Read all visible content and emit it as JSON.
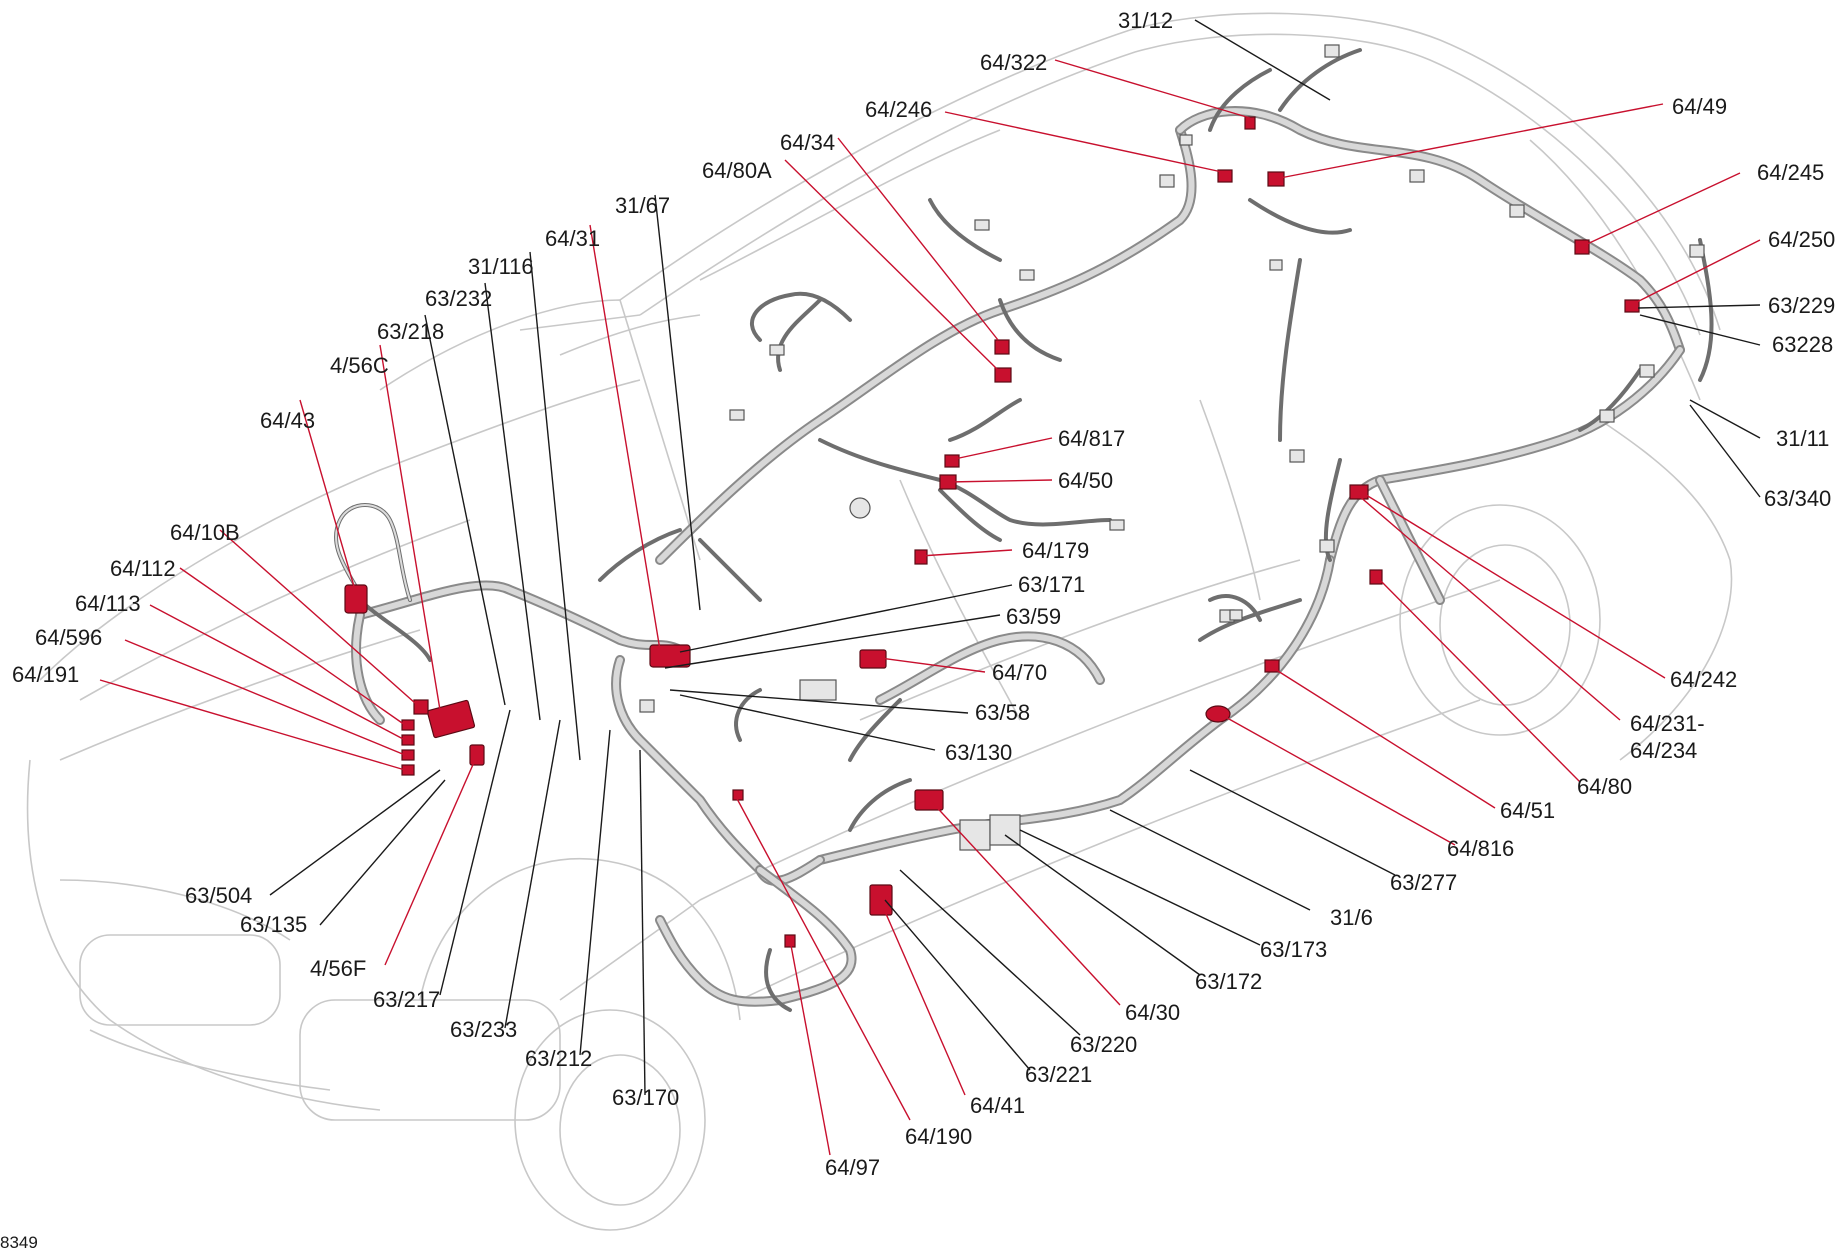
{
  "figure_id": "8349",
  "accent_color": "#c8102e",
  "labels": {
    "l_31_12": "31/12",
    "l_64_322": "64/322",
    "l_64_246": "64/246",
    "l_64_49": "64/49",
    "l_64_34": "64/34",
    "l_64_80A": "64/80A",
    "l_31_67": "31/67",
    "l_64_31": "64/31",
    "l_31_116": "31/116",
    "l_63_232": "63/232",
    "l_63_218": "63/218",
    "l_4_56C": "4/56C",
    "l_64_43": "64/43",
    "l_64_10B": "64/10B",
    "l_64_112": "64/112",
    "l_64_113": "64/113",
    "l_64_596": "64/596",
    "l_64_191": "64/191",
    "l_64_245": "64/245",
    "l_64_250": "64/250",
    "l_63_229": "63/229",
    "l_63228": "63228",
    "l_31_11": "31/11",
    "l_63_340": "63/340",
    "l_64_817": "64/817",
    "l_64_50": "64/50",
    "l_64_179": "64/179",
    "l_63_171": "63/171",
    "l_63_59": "63/59",
    "l_64_70": "64/70",
    "l_63_58": "63/58",
    "l_63_130": "63/130",
    "l_64_242": "64/242",
    "l_64_231a": "64/231-",
    "l_64_231b": "64/234",
    "l_64_80": "64/80",
    "l_64_51": "64/51",
    "l_64_816": "64/816",
    "l_63_277": "63/277",
    "l_31_6": "31/6",
    "l_63_173": "63/173",
    "l_63_172": "63/172",
    "l_64_30": "64/30",
    "l_63_220": "63/220",
    "l_63_221": "63/221",
    "l_64_41": "64/41",
    "l_64_190": "64/190",
    "l_64_97": "64/97",
    "l_63_170": "63/170",
    "l_63_212": "63/212",
    "l_63_233": "63/233",
    "l_63_217": "63/217",
    "l_4_56F": "4/56F",
    "l_63_135": "63/135",
    "l_63_504": "63/504"
  }
}
